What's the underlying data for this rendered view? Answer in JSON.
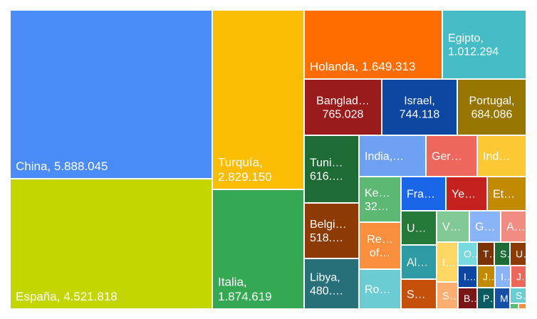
{
  "chart_data": {
    "type": "treemap",
    "title": "",
    "items": [
      {
        "label": "China, 5.888.045",
        "value": 5888045,
        "color": "#4A8CF7"
      },
      {
        "label": "España, 4.521.818",
        "value": 4521818,
        "color": "#C3D600"
      },
      {
        "label": "Turquía, 2.829.150",
        "value": 2829150,
        "color": "#FBBC04"
      },
      {
        "label": "Italia, 1.874.619",
        "value": 1874619,
        "color": "#34A853"
      },
      {
        "label": "Holanda, 1.649.313",
        "value": 1649313,
        "color": "#FF6D01"
      },
      {
        "label": "Egipto, 1.012.294",
        "value": 1012294,
        "color": "#46BDC6"
      },
      {
        "label": "Banglad… 765.028",
        "value": 765028,
        "color": "#9A1B1B"
      },
      {
        "label": "Israel, 744.118",
        "value": 744118,
        "color": "#0D47A1"
      },
      {
        "label": "Portugal, 684.086",
        "value": 684086,
        "color": "#977600"
      },
      {
        "label": "Tuni… 616.…",
        "value": 616000,
        "color": "#1E6B35"
      },
      {
        "label": "Belgi… 518.…",
        "value": 518000,
        "color": "#8D3A05"
      },
      {
        "label": "Libya, 480.…",
        "value": 480000,
        "color": "#27707A"
      },
      {
        "label": "India,…",
        "value": 350000,
        "color": "#6FA1F2"
      },
      {
        "label": "Ger…",
        "value": 300000,
        "color": "#EE675C"
      },
      {
        "label": "Ind…",
        "value": 290000,
        "color": "#FCC934"
      },
      {
        "label": "Ke… 32…",
        "value": 320000,
        "color": "#5BB974"
      },
      {
        "label": "Re… of…",
        "value": 300000,
        "color": "#FA903E"
      },
      {
        "label": "Ro…",
        "value": 280000,
        "color": "#6BCCD4"
      },
      {
        "label": "Fra…",
        "value": 270000,
        "color": "#1A66E8"
      },
      {
        "label": "Ye…",
        "value": 240000,
        "color": "#C5221F"
      },
      {
        "label": "Et…",
        "value": 230000,
        "color": "#C28A00"
      },
      {
        "label": "U…",
        "value": 190000,
        "color": "#257A3A"
      },
      {
        "label": "Al…",
        "value": 180000,
        "color": "#2E9AA4"
      },
      {
        "label": "S…",
        "value": 170000,
        "color": "#C4500A"
      },
      {
        "label": "V…",
        "value": 150000,
        "color": "#81C995"
      },
      {
        "label": "G…",
        "value": 130000,
        "color": "#8AB4F8"
      },
      {
        "label": "A…",
        "value": 120000,
        "color": "#F28B82"
      },
      {
        "label": "I…",
        "value": 110000,
        "color": "#FDD663"
      },
      {
        "label": "S…",
        "value": 100000,
        "color": "#FCAD70"
      },
      {
        "label": "O…",
        "value": 80000,
        "color": "#78D9DE"
      },
      {
        "label": "T…",
        "value": 70000,
        "color": "#7B3306"
      },
      {
        "label": "S…",
        "value": 65000,
        "color": "#1E6B35"
      },
      {
        "label": "U…",
        "value": 60000,
        "color": "#8D3A05"
      },
      {
        "label": "I…",
        "value": 58000,
        "color": "#0D47A1"
      },
      {
        "label": "J…",
        "value": 55000,
        "color": "#C28A00"
      },
      {
        "label": "I…",
        "value": 50000,
        "color": "#8AB4F8"
      },
      {
        "label": "J…",
        "value": 48000,
        "color": "#EE675C"
      },
      {
        "label": "B…",
        "value": 45000,
        "color": "#7A1616"
      },
      {
        "label": "P…",
        "value": 42000,
        "color": "#0B5B63"
      },
      {
        "label": "M…",
        "value": 40000,
        "color": "#174EA6"
      },
      {
        "label": "S…",
        "value": 38000,
        "color": "#6BCCD4"
      },
      {
        "label": "",
        "value": 30000,
        "color": "#5BB974"
      },
      {
        "label": "",
        "value": 25000,
        "color": "#FA903E"
      }
    ]
  }
}
